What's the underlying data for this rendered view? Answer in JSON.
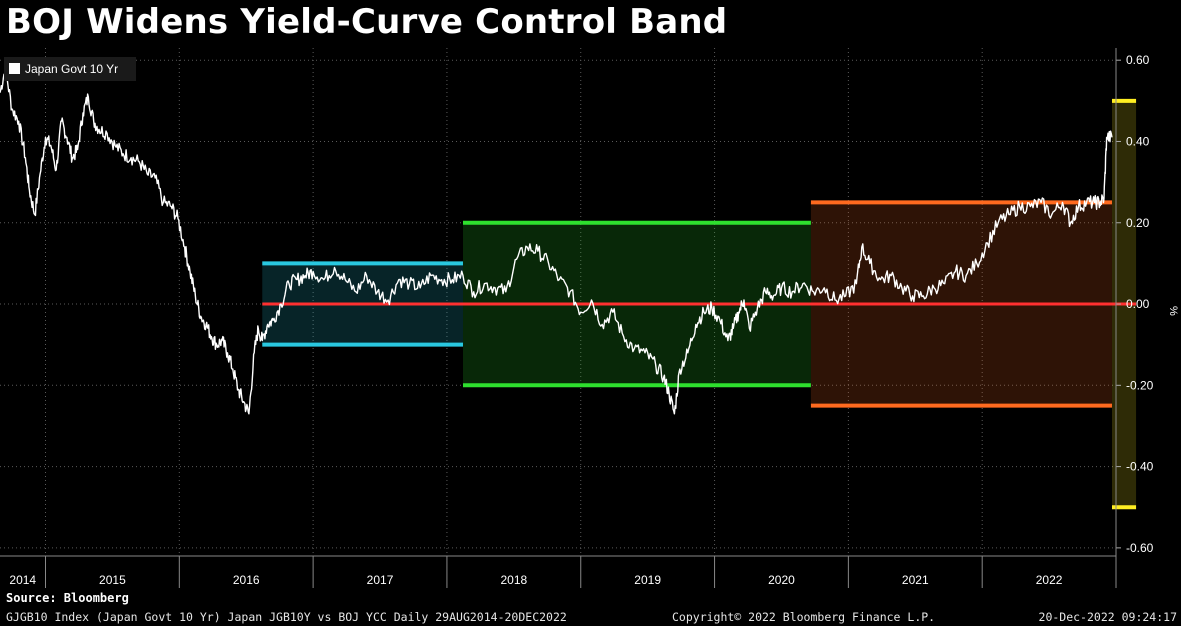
{
  "title": "BOJ Widens Yield-Curve Control Band",
  "source": "Source: Bloomberg",
  "footer": {
    "left": "GJGB10 Index (Japan Govt 10 Yr) Japan JGB10Y vs BOJ YCC  Daily 29AUG2014-20DEC2022",
    "middle": "Copyright© 2022 Bloomberg Finance L.P.",
    "right": "20-Dec-2022 09:24:17"
  },
  "colors": {
    "background": "#000000",
    "line": "#ffffff",
    "band_2016": "#29c8e0",
    "band_2018": "#2ee02e",
    "band_2021": "#ff6a1f",
    "band_2022": "#ffee22",
    "zero_line": "#ff3030"
  },
  "chart_data": {
    "type": "line",
    "legend": "Japan Govt 10 Yr",
    "legend_position": "top-left",
    "ylabel": "%",
    "ylim": [
      -0.62,
      0.63
    ],
    "yticks": [
      0.6,
      0.4,
      0.2,
      0.0,
      -0.2,
      -0.4,
      -0.6
    ],
    "ytick_labels": [
      "0.60",
      "0.40",
      "0.20",
      "0.00",
      "-0.20",
      "-0.40",
      "-0.60"
    ],
    "xlim": [
      2014.66,
      2023.0
    ],
    "x_tick_labels": [
      {
        "label": "2014",
        "x": 2014.83
      },
      {
        "label": "2015",
        "x": 2015.5
      },
      {
        "label": "2016",
        "x": 2016.5
      },
      {
        "label": "2017",
        "x": 2017.5
      },
      {
        "label": "2018",
        "x": 2018.5
      },
      {
        "label": "2019",
        "x": 2019.5
      },
      {
        "label": "2020",
        "x": 2020.5
      },
      {
        "label": "2021",
        "x": 2021.5
      },
      {
        "label": "2022",
        "x": 2022.5
      }
    ],
    "grid": true,
    "series": [
      {
        "name": "Japan Govt 10 Yr",
        "x": [
          2014.66,
          2014.7,
          2014.75,
          2014.8,
          2014.85,
          2014.88,
          2014.92,
          2014.96,
          2015.0,
          2015.04,
          2015.08,
          2015.12,
          2015.16,
          2015.2,
          2015.24,
          2015.28,
          2015.32,
          2015.36,
          2015.4,
          2015.46,
          2015.52,
          2015.58,
          2015.64,
          2015.7,
          2015.76,
          2015.82,
          2015.88,
          2015.94,
          2015.99,
          2016.04,
          2016.08,
          2016.12,
          2016.16,
          2016.2,
          2016.24,
          2016.28,
          2016.32,
          2016.36,
          2016.4,
          2016.44,
          2016.48,
          2016.52,
          2016.56,
          2016.59,
          2016.62,
          2016.66,
          2016.7,
          2016.76,
          2016.82,
          2016.88,
          2016.94,
          2017.0,
          2017.08,
          2017.16,
          2017.24,
          2017.32,
          2017.4,
          2017.48,
          2017.56,
          2017.64,
          2017.72,
          2017.8,
          2017.88,
          2017.96,
          2018.04,
          2018.12,
          2018.2,
          2018.28,
          2018.36,
          2018.44,
          2018.52,
          2018.6,
          2018.68,
          2018.76,
          2018.84,
          2018.92,
          2019.0,
          2019.08,
          2019.16,
          2019.24,
          2019.32,
          2019.4,
          2019.48,
          2019.56,
          2019.62,
          2019.66,
          2019.7,
          2019.74,
          2019.8,
          2019.86,
          2019.92,
          2019.98,
          2020.04,
          2020.1,
          2020.14,
          2020.18,
          2020.22,
          2020.26,
          2020.32,
          2020.38,
          2020.44,
          2020.5,
          2020.58,
          2020.66,
          2020.74,
          2020.82,
          2020.9,
          2020.98,
          2021.06,
          2021.1,
          2021.16,
          2021.24,
          2021.32,
          2021.4,
          2021.48,
          2021.56,
          2021.64,
          2021.72,
          2021.8,
          2021.88,
          2021.96,
          2022.04,
          2022.12,
          2022.2,
          2022.28,
          2022.36,
          2022.44,
          2022.52,
          2022.6,
          2022.66,
          2022.72,
          2022.78,
          2022.84,
          2022.88,
          2022.91,
          2022.93,
          2022.97
        ],
        "values": [
          0.52,
          0.58,
          0.48,
          0.45,
          0.36,
          0.28,
          0.22,
          0.32,
          0.41,
          0.39,
          0.33,
          0.45,
          0.41,
          0.36,
          0.38,
          0.47,
          0.51,
          0.45,
          0.43,
          0.42,
          0.39,
          0.37,
          0.36,
          0.35,
          0.32,
          0.31,
          0.25,
          0.24,
          0.21,
          0.14,
          0.08,
          0.02,
          -0.03,
          -0.05,
          -0.08,
          -0.1,
          -0.09,
          -0.12,
          -0.16,
          -0.21,
          -0.24,
          -0.27,
          -0.12,
          -0.06,
          -0.09,
          -0.05,
          -0.04,
          0.0,
          0.05,
          0.06,
          0.07,
          0.08,
          0.06,
          0.09,
          0.06,
          0.03,
          0.07,
          0.03,
          0.01,
          0.06,
          0.05,
          0.04,
          0.07,
          0.06,
          0.06,
          0.07,
          0.03,
          0.05,
          0.04,
          0.03,
          0.11,
          0.14,
          0.13,
          0.1,
          0.06,
          0.03,
          -0.02,
          0.01,
          -0.05,
          -0.02,
          -0.08,
          -0.11,
          -0.12,
          -0.15,
          -0.18,
          -0.22,
          -0.27,
          -0.16,
          -0.12,
          -0.05,
          -0.02,
          -0.01,
          -0.04,
          -0.09,
          -0.06,
          -0.02,
          0.01,
          -0.06,
          -0.01,
          0.03,
          0.02,
          0.04,
          0.03,
          0.05,
          0.03,
          0.04,
          0.01,
          0.02,
          0.05,
          0.14,
          0.1,
          0.06,
          0.07,
          0.04,
          0.02,
          0.02,
          0.04,
          0.05,
          0.08,
          0.07,
          0.1,
          0.15,
          0.2,
          0.22,
          0.24,
          0.24,
          0.25,
          0.22,
          0.25,
          0.2,
          0.24,
          0.25,
          0.25,
          0.25,
          0.26,
          0.41,
          0.41
        ]
      }
    ],
    "bands": [
      {
        "label": "2016 band",
        "x0": 2016.62,
        "x1": 2018.12,
        "y0": -0.1,
        "y1": 0.1,
        "color": "#29c8e0"
      },
      {
        "label": "2018 band",
        "x0": 2018.12,
        "x1": 2020.72,
        "y0": -0.2,
        "y1": 0.2,
        "color": "#2ee02e"
      },
      {
        "label": "2021 band",
        "x0": 2020.72,
        "x1": 2022.97,
        "y0": -0.25,
        "y1": 0.25,
        "color": "#ff6a1f"
      },
      {
        "label": "2022 band",
        "x0": 2022.97,
        "x1": 2023.15,
        "y0": -0.5,
        "y1": 0.5,
        "color": "#ffee22"
      }
    ],
    "reference_line": {
      "y": 0.0,
      "x0": 2016.62,
      "x1": 2023.15,
      "color": "#ff3030"
    }
  }
}
